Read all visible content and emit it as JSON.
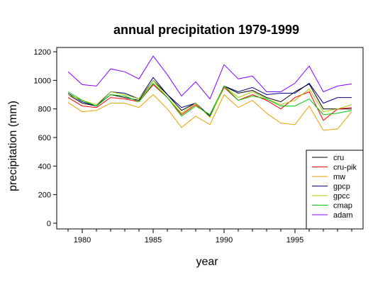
{
  "chart_data": {
    "type": "line",
    "title": "annual precipitation 1979-1999",
    "xlabel": "year",
    "ylabel": "precipitation (mm)",
    "xlim": [
      1978.2,
      1999.8
    ],
    "ylim": [
      -40,
      1230
    ],
    "x_ticks": [
      1980,
      1985,
      1990,
      1995
    ],
    "y_ticks": [
      0,
      200,
      400,
      600,
      800,
      1000,
      1200
    ],
    "grid": false,
    "legend_position": "bottom-right",
    "x": [
      1979,
      1980,
      1981,
      1982,
      1983,
      1984,
      1985,
      1986,
      1987,
      1988,
      1989,
      1990,
      1991,
      1992,
      1993,
      1994,
      1995,
      1996,
      1997,
      1998,
      1999
    ],
    "series": [
      {
        "name": "cru",
        "color": "#000000",
        "values": [
          900,
          840,
          820,
          900,
          880,
          860,
          1000,
          900,
          790,
          840,
          750,
          960,
          910,
          930,
          880,
          850,
          920,
          975,
          800,
          800,
          800
        ]
      },
      {
        "name": "cru-pik",
        "color": "#ff0000",
        "values": [
          880,
          820,
          810,
          880,
          870,
          850,
          970,
          880,
          760,
          830,
          750,
          950,
          860,
          900,
          860,
          800,
          880,
          920,
          720,
          800,
          810
        ]
      },
      {
        "name": "mw",
        "color": "#e6a000",
        "values": [
          845,
          780,
          790,
          840,
          840,
          810,
          900,
          800,
          670,
          750,
          690,
          900,
          810,
          860,
          770,
          700,
          690,
          820,
          650,
          660,
          780
        ]
      },
      {
        "name": "gpcp",
        "color": "#000080",
        "values": [
          910,
          850,
          820,
          920,
          910,
          870,
          1020,
          900,
          810,
          840,
          750,
          960,
          920,
          950,
          900,
          910,
          910,
          980,
          840,
          880,
          880
        ]
      },
      {
        "name": "gpcc",
        "color": "#aacc00",
        "values": [
          900,
          860,
          830,
          920,
          900,
          870,
          1000,
          880,
          770,
          840,
          740,
          960,
          880,
          920,
          870,
          830,
          860,
          940,
          780,
          800,
          830
        ]
      },
      {
        "name": "cmap",
        "color": "#00c800",
        "values": [
          920,
          860,
          820,
          900,
          890,
          850,
          980,
          880,
          750,
          820,
          760,
          960,
          860,
          890,
          870,
          820,
          820,
          870,
          760,
          770,
          790
        ]
      },
      {
        "name": "adam",
        "color": "#8000ff",
        "values": [
          1060,
          970,
          960,
          1080,
          1060,
          1010,
          1170,
          1040,
          890,
          990,
          870,
          1110,
          1010,
          1030,
          920,
          920,
          980,
          1100,
          920,
          960,
          975
        ]
      }
    ]
  }
}
